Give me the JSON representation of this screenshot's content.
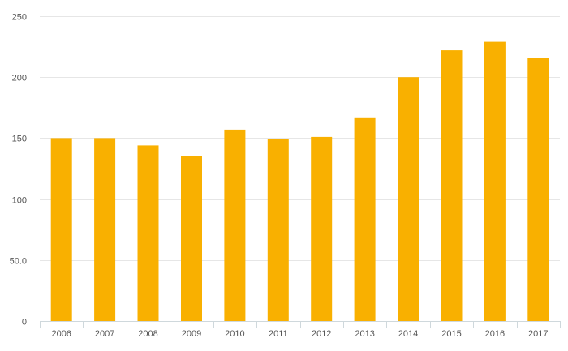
{
  "chart_data": {
    "type": "bar",
    "title": "",
    "xlabel": "",
    "ylabel": "",
    "categories": [
      "2006",
      "2007",
      "2008",
      "2009",
      "2010",
      "2011",
      "2012",
      "2013",
      "2014",
      "2015",
      "2016",
      "2017"
    ],
    "values": [
      150,
      150,
      144,
      135,
      157,
      149,
      151,
      167,
      200,
      222,
      229,
      216
    ],
    "ylim": [
      0,
      250
    ],
    "yticks": [
      0,
      50,
      100,
      150,
      200,
      250
    ],
    "ytick_labels": [
      "0",
      "50.0",
      "100",
      "150",
      "200",
      "250"
    ],
    "grid": true,
    "legend": "none",
    "bar_color": "#f9b000",
    "grid_color": "#e6e6e6",
    "axis_color": "#cfd8dc"
  }
}
